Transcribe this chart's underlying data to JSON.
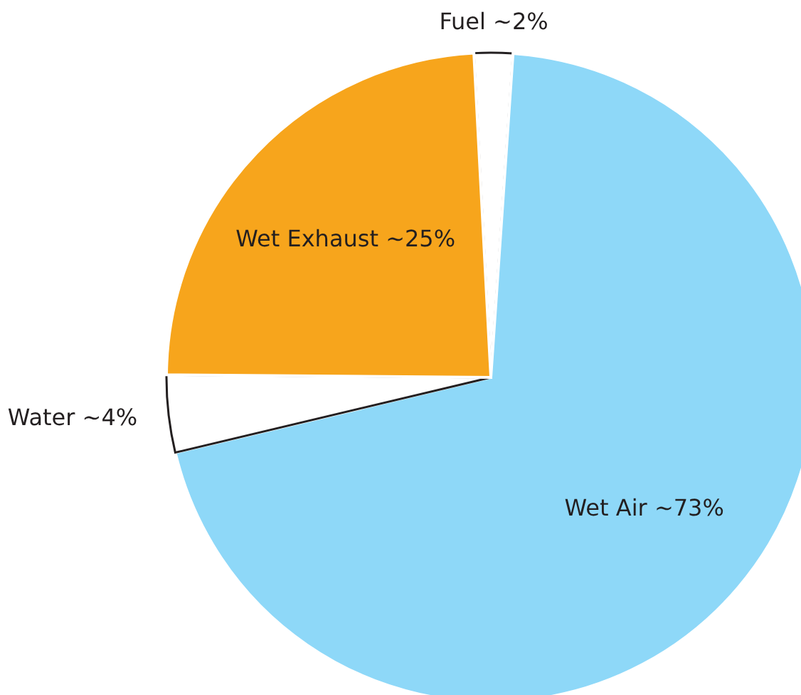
{
  "chart_data": {
    "type": "pie",
    "categories": [
      "Fuel",
      "Wet Air",
      "Water",
      "Wet Exhaust"
    ],
    "values": [
      2,
      73,
      4,
      25
    ],
    "value_labels": [
      "~2%",
      "~73%",
      "~4%",
      "~25%"
    ],
    "colors": [
      "#ffffff",
      "#8ed8f8",
      "#ffffff",
      "#f7a51c"
    ]
  }
}
